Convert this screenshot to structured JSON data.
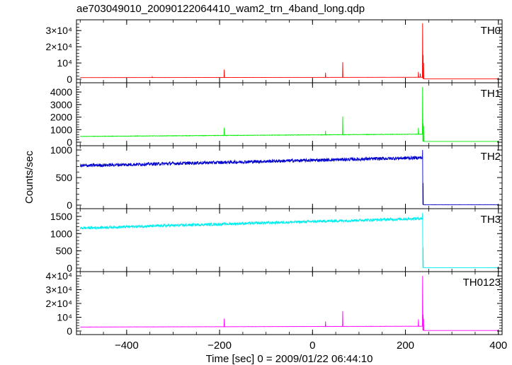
{
  "chart_data": {
    "type": "line",
    "title": "ae703049010_20090122064410_wam2_trn_4band_long.qdp",
    "xlabel": "Time [sec] 0 = 2009/01/22 06:44:10",
    "ylabel": "Counts/sec",
    "xlim": [
      -508,
      408
    ],
    "x_ticks": [
      -400,
      -200,
      0,
      200,
      400
    ],
    "x_tick_labels": [
      "−400",
      "−200",
      "0",
      "200",
      "400"
    ],
    "panels": [
      {
        "name": "TH0",
        "color": "#ff0000",
        "ylim": [
          0,
          34000
        ],
        "y_ticks": [
          0,
          10000,
          20000,
          30000
        ],
        "y_tick_labels": [
          "0",
          "10⁴",
          "2×10⁴",
          "3×10⁴"
        ],
        "baseline_start": 1000,
        "baseline_end": 1200,
        "noise": 25,
        "post_level": 250,
        "spikes": [
          [
            -345,
            1500
          ],
          [
            -190,
            6000
          ],
          [
            28,
            4000
          ],
          [
            65,
            10500
          ],
          [
            228,
            4500
          ],
          [
            232,
            3500
          ],
          [
            237,
            34500
          ],
          [
            238,
            15000
          ],
          [
            239,
            10000
          ]
        ]
      },
      {
        "name": "TH1",
        "color": "#00ee00",
        "ylim": [
          0,
          4400
        ],
        "y_ticks": [
          0,
          1000,
          2000,
          3000,
          4000
        ],
        "y_tick_labels": [
          "0",
          "1000",
          "2000",
          "3000",
          "4000"
        ],
        "baseline_start": 460,
        "baseline_end": 640,
        "noise": 18,
        "post_level": 60,
        "spikes": [
          [
            -190,
            1150
          ],
          [
            28,
            900
          ],
          [
            65,
            2050
          ],
          [
            228,
            1150
          ],
          [
            237,
            4400
          ],
          [
            238,
            1500
          ],
          [
            239,
            1300
          ]
        ]
      },
      {
        "name": "TH2",
        "color": "#0000cc",
        "ylim": [
          0,
          1000
        ],
        "y_ticks": [
          0,
          500,
          1000
        ],
        "y_tick_labels": [
          "0",
          "500",
          "1000"
        ],
        "baseline_start": 715,
        "baseline_end": 860,
        "noise": 30,
        "post_level": 8,
        "spikes": [
          [
            237,
            1000
          ],
          [
            238,
            400
          ]
        ]
      },
      {
        "name": "TH3",
        "color": "#00eeee",
        "ylim": [
          0,
          1600
        ],
        "y_ticks": [
          0,
          500,
          1000,
          1500
        ],
        "y_tick_labels": [
          "0",
          "500",
          "1000",
          "1500"
        ],
        "baseline_start": 1160,
        "baseline_end": 1440,
        "noise": 40,
        "post_level": 12,
        "spikes": [
          [
            237,
            1600
          ],
          [
            238,
            600
          ]
        ]
      },
      {
        "name": "TH0123",
        "color": "#ff00ff",
        "ylim": [
          0,
          40000
        ],
        "y_ticks": [
          0,
          10000,
          20000,
          30000,
          40000
        ],
        "y_tick_labels": [
          "0",
          "10⁴",
          "2×10⁴",
          "3×10⁴",
          "4×10⁴"
        ],
        "baseline_start": 2900,
        "baseline_end": 3500,
        "noise": 80,
        "post_level": 400,
        "spikes": [
          [
            -190,
            9000
          ],
          [
            28,
            7000
          ],
          [
            65,
            14500
          ],
          [
            228,
            8500
          ],
          [
            237,
            40000
          ],
          [
            238,
            12000
          ],
          [
            239,
            9000
          ]
        ]
      }
    ],
    "t_start": -500,
    "t_end": 400,
    "burst_time": 237
  }
}
